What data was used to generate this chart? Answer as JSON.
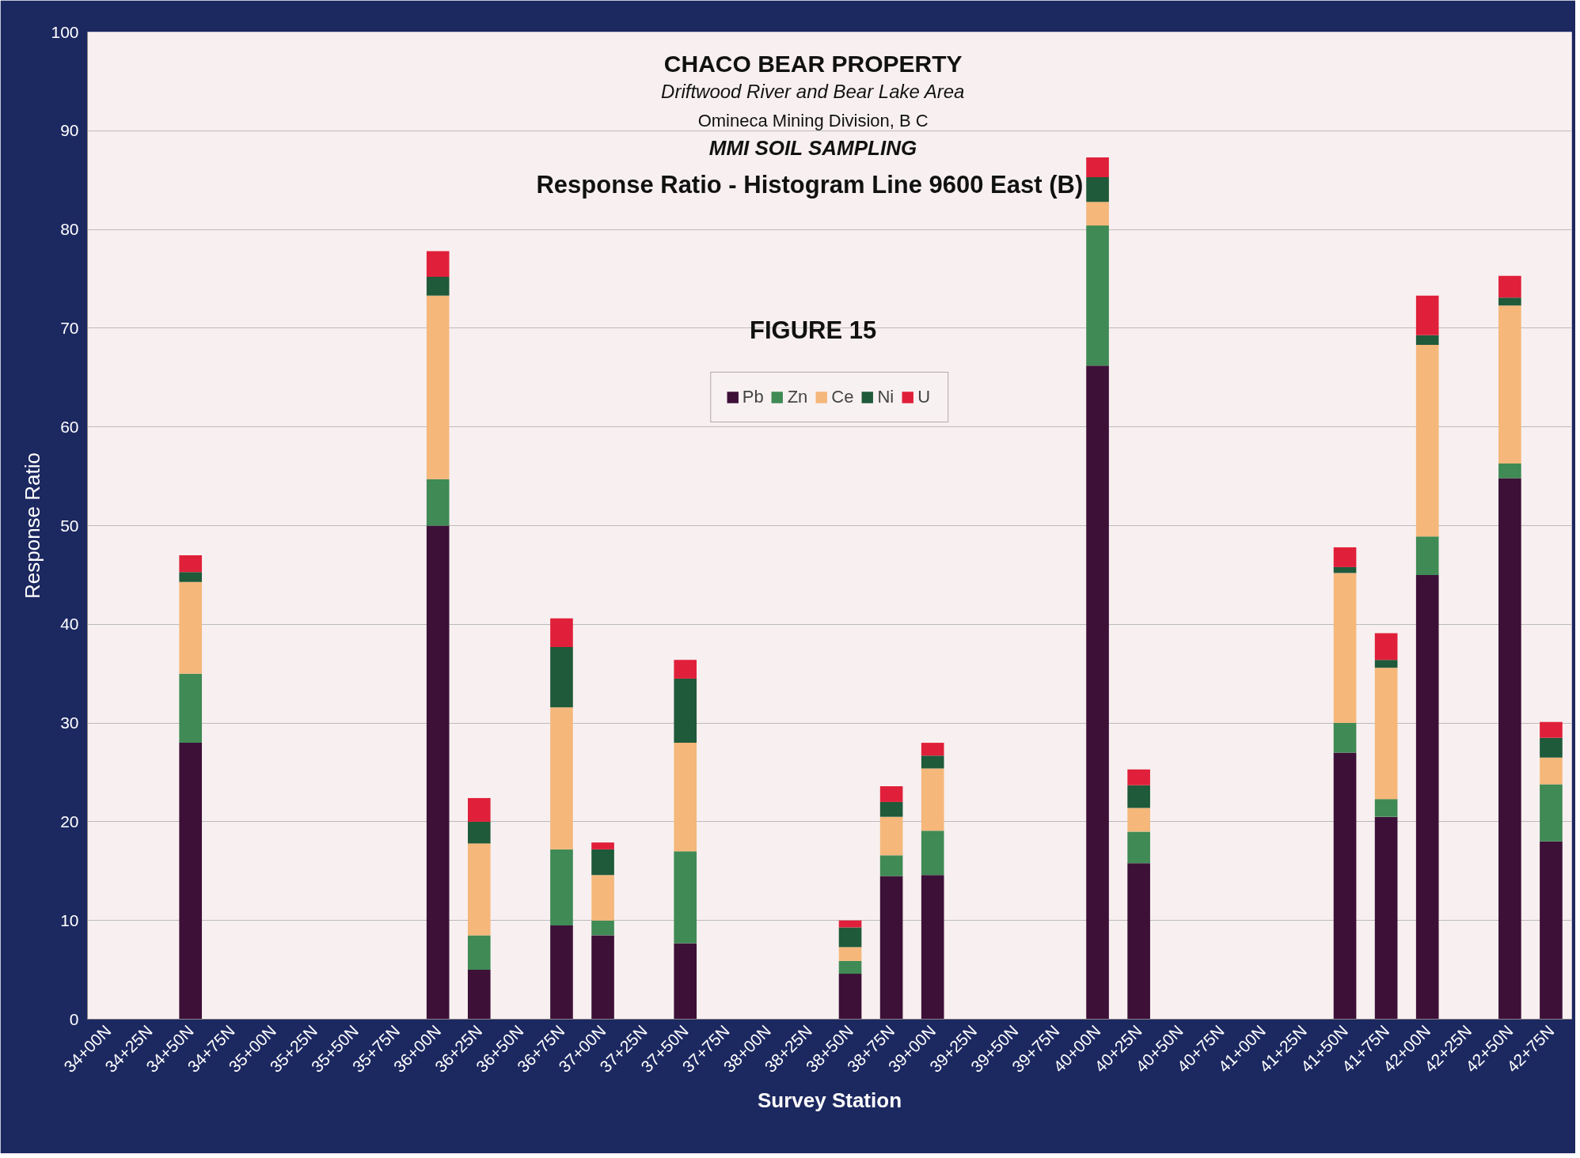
{
  "chart_data": {
    "type": "bar",
    "stacked": true,
    "title": "CHACO BEAR PROPERTY",
    "subtitle": "Driftwood River and Bear Lake Area",
    "annotations": [
      "Omineca Mining Division, B C",
      "MMI SOIL SAMPLING",
      "Response Ratio - Histogram  Line 9600 East (B)",
      "FIGURE 15"
    ],
    "xlabel": "Survey Station",
    "ylabel": "Response Ratio",
    "categories": [
      "34+00N",
      "34+25N",
      "34+50N",
      "34+75N",
      "35+00N",
      "35+25N",
      "35+50N",
      "35+75N",
      "36+00N",
      "36+25N",
      "36+50N",
      "36+75N",
      "37+00N",
      "37+25N",
      "37+50N",
      "37+75N",
      "38+00N",
      "38+25N",
      "38+50N",
      "38+75N",
      "39+00N",
      "39+25N",
      "39+50N",
      "39+75N",
      "40+00N",
      "40+25N",
      "40+50N",
      "40+75N",
      "41+00N",
      "41+25N",
      "41+50N",
      "41+75N",
      "42+00N",
      "42+25N",
      "42+50N",
      "42+75N"
    ],
    "series": [
      {
        "name": "Pb",
        "color": "#3d1038",
        "values": [
          0,
          0,
          28,
          0,
          0,
          0,
          0,
          0,
          50,
          5,
          0,
          9.5,
          8.5,
          0,
          7.7,
          0,
          0,
          0,
          4.6,
          14.5,
          14.6,
          0,
          0,
          0,
          66.2,
          15.8,
          0,
          0,
          0,
          0,
          27,
          20.5,
          45,
          0,
          54.8,
          18
        ]
      },
      {
        "name": "Zn",
        "color": "#3f8a55",
        "values": [
          0,
          0,
          7,
          0,
          0,
          0,
          0,
          0,
          4.7,
          3.5,
          0,
          7.7,
          1.5,
          0,
          9.3,
          0,
          0,
          0,
          1.3,
          2.1,
          4.5,
          0,
          0,
          0,
          14.2,
          3.2,
          0,
          0,
          0,
          0,
          3,
          1.8,
          3.9,
          0,
          1.5,
          5.8
        ]
      },
      {
        "name": "Ce",
        "color": "#f5b77a",
        "values": [
          0,
          0,
          9.3,
          0,
          0,
          0,
          0,
          0,
          18.6,
          9.3,
          0,
          14.4,
          4.6,
          0,
          11,
          0,
          0,
          0,
          1.4,
          3.9,
          6.3,
          0,
          0,
          0,
          2.4,
          2.4,
          0,
          0,
          0,
          0,
          15.2,
          13.3,
          19.4,
          0,
          16,
          2.7
        ]
      },
      {
        "name": "Ni",
        "color": "#1f5a3a",
        "values": [
          0,
          0,
          1,
          0,
          0,
          0,
          0,
          0,
          1.9,
          2.2,
          0,
          6.1,
          2.6,
          0,
          6.5,
          0,
          0,
          0,
          2,
          1.5,
          1.3,
          0,
          0,
          0,
          2.5,
          2.3,
          0,
          0,
          0,
          0,
          0.6,
          0.8,
          1,
          0,
          0.8,
          2
        ]
      },
      {
        "name": "U",
        "color": "#e0203a",
        "values": [
          0,
          0,
          1.7,
          0,
          0,
          0,
          0,
          0,
          2.6,
          2.4,
          0,
          2.9,
          0.7,
          0,
          1.9,
          0,
          0,
          0,
          0.7,
          1.6,
          1.3,
          0,
          0,
          0,
          2,
          1.6,
          0,
          0,
          0,
          0,
          2,
          2.7,
          4,
          0,
          2.2,
          1.6
        ]
      }
    ],
    "ylim": [
      0,
      100
    ],
    "yticks": [
      0,
      10,
      20,
      30,
      40,
      50,
      60,
      70,
      80,
      90,
      100
    ],
    "grid": "y",
    "legend": "top"
  }
}
